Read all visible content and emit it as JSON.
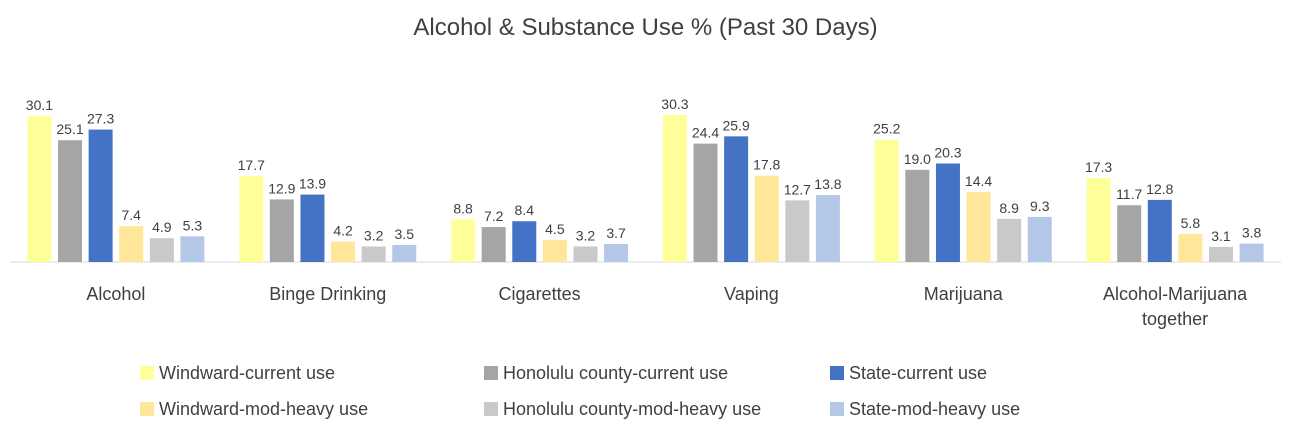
{
  "chart_data": {
    "type": "bar",
    "title": "Alcohol & Substance Use % (Past 30 Days)",
    "categories": [
      [
        "Alcohol"
      ],
      [
        "Binge Drinking"
      ],
      [
        "Cigarettes"
      ],
      [
        "Vaping"
      ],
      [
        "Marijuana"
      ],
      [
        "Alcohol-Marijuana",
        "together"
      ]
    ],
    "series": [
      {
        "name": "Windward-current use",
        "color": "#FFFF99",
        "values": [
          30.1,
          17.7,
          8.8,
          30.3,
          25.2,
          17.3
        ]
      },
      {
        "name": "Honolulu county-current use",
        "color": "#A5A5A5",
        "values": [
          25.1,
          12.9,
          7.2,
          24.4,
          19.0,
          11.7
        ]
      },
      {
        "name": "State-current use",
        "color": "#4472C4",
        "values": [
          27.3,
          13.9,
          8.4,
          25.9,
          20.3,
          12.8
        ]
      },
      {
        "name": "Windward-mod-heavy use",
        "color": "#FFE699",
        "values": [
          7.4,
          4.2,
          4.5,
          17.8,
          14.4,
          5.8
        ]
      },
      {
        "name": "Honolulu county-mod-heavy use",
        "color": "#C9C9C9",
        "values": [
          4.9,
          3.2,
          3.2,
          12.7,
          8.9,
          3.1
        ]
      },
      {
        "name": "State-mod-heavy use",
        "color": "#B4C7E7",
        "values": [
          5.3,
          3.5,
          3.7,
          13.8,
          9.3,
          3.8
        ]
      }
    ],
    "ylim": [
      0,
      33
    ],
    "grid": false,
    "legend": "bottom",
    "axis_color": "#D9D9D9"
  }
}
